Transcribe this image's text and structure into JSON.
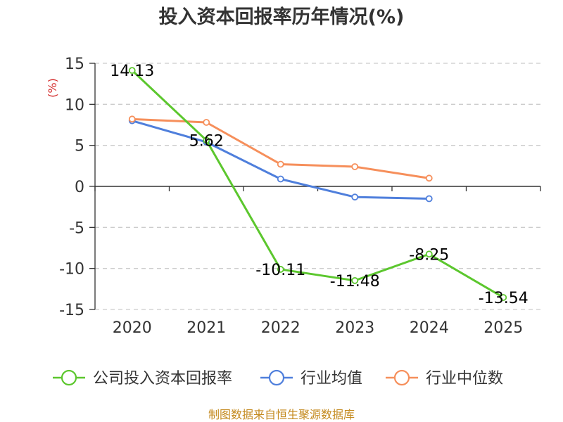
{
  "chart_data": {
    "type": "line",
    "title": "投入资本回报率历年情况(%)",
    "ylabel": "(%)",
    "xlabel": "",
    "categories": [
      "2020",
      "2021",
      "2022",
      "2023",
      "2024",
      "2025"
    ],
    "ylim": [
      -15,
      15
    ],
    "yticks": [
      15,
      10,
      5,
      0,
      -5,
      -10,
      -15
    ],
    "grid": true,
    "legend_position": "bottom",
    "series": [
      {
        "name": "公司投入资本回报率",
        "color": "#5cc72e",
        "values": [
          14.13,
          5.62,
          -10.11,
          -11.48,
          -8.25,
          -13.54
        ],
        "labels": [
          "14.13",
          "5.62",
          "-10.11",
          "-11.48",
          "-8.25",
          "-13.54"
        ]
      },
      {
        "name": "行业均值",
        "color": "#4f7fdc",
        "values": [
          8.0,
          5.4,
          0.9,
          -1.3,
          -1.5,
          null
        ]
      },
      {
        "name": "行业中位数",
        "color": "#f68f5b",
        "values": [
          8.2,
          7.8,
          2.7,
          2.4,
          1.0,
          null
        ]
      }
    ]
  },
  "unit_color": "#d42d2d",
  "source_color": "#c48a1e",
  "source": "制图数据来自恒生聚源数据库"
}
